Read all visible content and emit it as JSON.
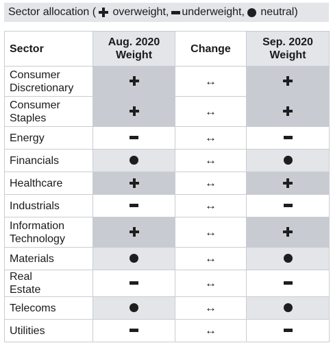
{
  "title": {
    "prefix": "Sector allocation (",
    "overweight": " overweight,",
    "underweight": "underweight,",
    "neutral": " neutral)"
  },
  "headers": {
    "sector": "Sector",
    "aug": "Aug. 2020 Weight",
    "change": "Change",
    "sep": "Sep. 2020 Weight"
  },
  "change_symbol": "↔",
  "rows": [
    {
      "sector": "Consumer Discretionary",
      "aug": "overweight",
      "change": "unchanged",
      "sep": "overweight"
    },
    {
      "sector": "Consumer Staples",
      "aug": "overweight",
      "change": "unchanged",
      "sep": "overweight"
    },
    {
      "sector": "Energy",
      "aug": "underweight",
      "change": "unchanged",
      "sep": "underweight"
    },
    {
      "sector": "Financials",
      "aug": "neutral",
      "change": "unchanged",
      "sep": "neutral"
    },
    {
      "sector": "Healthcare",
      "aug": "overweight",
      "change": "unchanged",
      "sep": "overweight"
    },
    {
      "sector": "Industrials",
      "aug": "underweight",
      "change": "unchanged",
      "sep": "underweight"
    },
    {
      "sector": "Information Technology",
      "aug": "overweight",
      "change": "unchanged",
      "sep": "overweight"
    },
    {
      "sector": "Materials",
      "aug": "neutral",
      "change": "unchanged",
      "sep": "neutral"
    },
    {
      "sector": "Real Estate",
      "aug": "underweight",
      "change": "unchanged",
      "sep": "underweight"
    },
    {
      "sector": "Telecoms",
      "aug": "neutral",
      "change": "unchanged",
      "sep": "neutral"
    },
    {
      "sector": "Utilities",
      "aug": "underweight",
      "change": "unchanged",
      "sep": "underweight"
    }
  ],
  "colors": {
    "overweight_fill": "#c8ccd2",
    "neutral_fill": "#e3e5e9",
    "underweight_fill": "#ffffff",
    "border": "#c9ccd1",
    "title_bg": "#e3e5e9"
  },
  "icons": {
    "overweight": "plus-icon",
    "underweight": "minus-icon",
    "neutral": "dot-icon",
    "change": "left-right-arrow-icon"
  }
}
